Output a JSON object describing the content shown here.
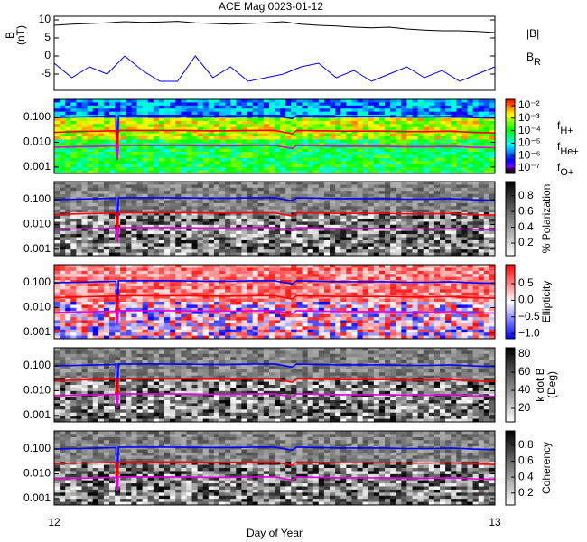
{
  "chart_data": [
    {
      "type": "line",
      "title": "ACE Mag 0023-01-12",
      "ylabel": [
        "B",
        "(nT)"
      ],
      "x": [
        12.0,
        12.04,
        12.08,
        12.12,
        12.16,
        12.2,
        12.24,
        12.28,
        12.32,
        12.36,
        12.4,
        12.44,
        12.48,
        12.52,
        12.56,
        12.6,
        12.64,
        12.68,
        12.72,
        12.76,
        12.8,
        12.84,
        12.88,
        12.92,
        12.96,
        13.0
      ],
      "xlim": [
        12,
        13
      ],
      "ylim": [
        -9.5,
        11
      ],
      "yticks": [
        10,
        5,
        0,
        -5
      ],
      "series": [
        {
          "name": "|B|",
          "color": "#000000",
          "values": [
            8.5,
            8.8,
            9,
            9.2,
            9.5,
            9.3,
            9.4,
            9.6,
            9.2,
            9.0,
            8.8,
            9.0,
            9.2,
            9.5,
            8.8,
            8.5,
            8.3,
            8.0,
            7.8,
            8.0,
            7.5,
            7.2,
            7.0,
            7.0,
            6.8,
            6.5
          ]
        },
        {
          "name": "BR",
          "color": "#0000ff",
          "values": [
            -2,
            -6,
            -3,
            -5,
            0,
            -4,
            -7,
            -7,
            0,
            -6,
            -3,
            -7,
            -6,
            -5,
            -3,
            -2,
            -6,
            -4,
            -7,
            -5,
            -3,
            -6,
            -4,
            -7,
            -5,
            -3
          ]
        }
      ]
    },
    {
      "type": "spectrogram",
      "colormap": "rainbow",
      "ylog": true,
      "zlog": true,
      "x": [
        12.0,
        12.05,
        12.1,
        12.14,
        12.143,
        12.146,
        12.2,
        12.25,
        12.3,
        12.35,
        12.4,
        12.45,
        12.5,
        12.54,
        12.55,
        12.6,
        12.65,
        12.7,
        12.75,
        12.8,
        12.85,
        12.9,
        12.95,
        13.0
      ],
      "xlim": [
        12,
        13
      ],
      "ylim": [
        0.00055,
        0.54
      ],
      "yticks": [
        {
          "value": 0.1,
          "label": "0.100"
        },
        {
          "value": 0.01,
          "label": "0.010"
        },
        0.001
      ],
      "zlim": [
        3.7e-08,
        0.032
      ],
      "zticks": [
        {
          "value": 0.01,
          "label": "10⁻²"
        },
        {
          "value": 0.001,
          "label": "10⁻³"
        },
        {
          "value": 0.0001,
          "label": "10⁻⁴"
        },
        {
          "value": 1e-05,
          "label": "10⁻⁵"
        },
        {
          "value": 1e-06,
          "label": "10⁻⁶"
        },
        {
          "value": 1e-07,
          "label": "10⁻⁷"
        }
      ],
      "series": [
        {
          "name": "fH+",
          "color": "#0000ff",
          "values": [
            0.1,
            0.105,
            0.11,
            0.115,
            0.003,
            0.12,
            0.12,
            0.12,
            0.118,
            0.115,
            0.115,
            0.12,
            0.12,
            0.09,
            0.12,
            0.115,
            0.11,
            0.11,
            0.11,
            0.105,
            0.105,
            0.11,
            0.1,
            0.095
          ]
        },
        {
          "name": "fHe+",
          "color": "#ff0000",
          "values": [
            0.025,
            0.027,
            0.028,
            0.029,
            0.002,
            0.03,
            0.03,
            0.03,
            0.03,
            0.029,
            0.029,
            0.03,
            0.03,
            0.022,
            0.03,
            0.029,
            0.028,
            0.028,
            0.028,
            0.027,
            0.027,
            0.028,
            0.025,
            0.024
          ]
        },
        {
          "name": "fO+",
          "color": "#e000e0",
          "values": [
            0.0063,
            0.0066,
            0.0069,
            0.0072,
            0.0019,
            0.0075,
            0.0075,
            0.0075,
            0.0074,
            0.0072,
            0.0072,
            0.0075,
            0.0075,
            0.0056,
            0.0075,
            0.0072,
            0.0069,
            0.0069,
            0.0069,
            0.0066,
            0.0066,
            0.0069,
            0.0063,
            0.006
          ]
        }
      ]
    },
    {
      "type": "spectrogram",
      "colormap": "gray",
      "ylog": true,
      "colorbar_label": [
        "% Polarization"
      ],
      "x": [
        12.0,
        12.05,
        12.1,
        12.14,
        12.143,
        12.146,
        12.2,
        12.25,
        12.3,
        12.35,
        12.4,
        12.45,
        12.5,
        12.54,
        12.55,
        12.6,
        12.65,
        12.7,
        12.75,
        12.8,
        12.85,
        12.9,
        12.95,
        13.0
      ],
      "xlim": [
        12,
        13
      ],
      "ylim": [
        0.00055,
        0.54
      ],
      "yticks": [
        {
          "value": 0.1,
          "label": "0.100"
        },
        {
          "value": 0.01,
          "label": "0.010"
        },
        0.001
      ],
      "zlim": [
        0.04,
        0.98
      ],
      "zticks": [
        0.8,
        0.6,
        0.4,
        0.2
      ],
      "series": [
        {
          "color": "#0000ff",
          "values": [
            0.1,
            0.105,
            0.11,
            0.115,
            0.003,
            0.12,
            0.12,
            0.12,
            0.118,
            0.115,
            0.115,
            0.12,
            0.12,
            0.09,
            0.12,
            0.115,
            0.11,
            0.11,
            0.11,
            0.105,
            0.105,
            0.11,
            0.1,
            0.095
          ]
        },
        {
          "color": "#ff0000",
          "values": [
            0.025,
            0.027,
            0.028,
            0.029,
            0.002,
            0.03,
            0.03,
            0.03,
            0.03,
            0.029,
            0.029,
            0.03,
            0.03,
            0.022,
            0.03,
            0.029,
            0.028,
            0.028,
            0.028,
            0.027,
            0.027,
            0.028,
            0.025,
            0.024
          ]
        },
        {
          "color": "#e000e0",
          "values": [
            0.0063,
            0.0066,
            0.0069,
            0.0072,
            0.0019,
            0.0075,
            0.0075,
            0.0075,
            0.0074,
            0.0072,
            0.0072,
            0.0075,
            0.0075,
            0.0056,
            0.0075,
            0.0072,
            0.0069,
            0.0069,
            0.0069,
            0.0066,
            0.0066,
            0.0069,
            0.0063,
            0.006
          ]
        }
      ]
    },
    {
      "type": "spectrogram",
      "colormap": "bwr",
      "ylog": true,
      "colorbar_label": [
        "Ellipticity"
      ],
      "x": [
        12.0,
        12.05,
        12.1,
        12.14,
        12.143,
        12.146,
        12.2,
        12.25,
        12.3,
        12.35,
        12.4,
        12.45,
        12.5,
        12.54,
        12.55,
        12.6,
        12.65,
        12.7,
        12.75,
        12.8,
        12.85,
        12.9,
        12.95,
        13.0
      ],
      "xlim": [
        12,
        13
      ],
      "ylim": [
        0.00055,
        0.54
      ],
      "yticks": [
        {
          "value": 0.1,
          "label": "0.100"
        },
        {
          "value": 0.01,
          "label": "0.010"
        },
        0.001
      ],
      "zlim": [
        -1.16,
        1.07
      ],
      "zticks": [
        0.5,
        {
          "value": 0,
          "label": "0.0"
        },
        {
          "value": -0.5,
          "label": "−0.5"
        },
        {
          "value": -1,
          "label": "−1.0"
        }
      ],
      "series": [
        {
          "color": "#0000ff",
          "values": [
            0.1,
            0.105,
            0.11,
            0.115,
            0.003,
            0.12,
            0.12,
            0.12,
            0.118,
            0.115,
            0.115,
            0.12,
            0.12,
            0.09,
            0.12,
            0.115,
            0.11,
            0.11,
            0.11,
            0.105,
            0.105,
            0.11,
            0.1,
            0.095
          ]
        },
        {
          "color": "#ff0000",
          "values": [
            0.025,
            0.027,
            0.028,
            0.029,
            0.002,
            0.03,
            0.03,
            0.03,
            0.03,
            0.029,
            0.029,
            0.03,
            0.03,
            0.022,
            0.03,
            0.029,
            0.028,
            0.028,
            0.028,
            0.027,
            0.027,
            0.028,
            0.025,
            0.024
          ]
        },
        {
          "color": "#e000e0",
          "values": [
            0.0063,
            0.0066,
            0.0069,
            0.0072,
            0.0019,
            0.0075,
            0.0075,
            0.0075,
            0.0074,
            0.0072,
            0.0072,
            0.0075,
            0.0075,
            0.0056,
            0.0075,
            0.0072,
            0.0069,
            0.0069,
            0.0069,
            0.0066,
            0.0066,
            0.0069,
            0.0063,
            0.006
          ]
        }
      ]
    },
    {
      "type": "spectrogram",
      "colormap": "gray",
      "ylog": true,
      "colorbar_label": [
        "k dot B",
        "(Deg)"
      ],
      "x": [
        12.0,
        12.05,
        12.1,
        12.14,
        12.143,
        12.146,
        12.2,
        12.25,
        12.3,
        12.35,
        12.4,
        12.45,
        12.5,
        12.54,
        12.55,
        12.6,
        12.65,
        12.7,
        12.75,
        12.8,
        12.85,
        12.9,
        12.95,
        13.0
      ],
      "xlim": [
        12,
        13
      ],
      "ylim": [
        0.00055,
        0.54
      ],
      "yticks": [
        {
          "value": 0.1,
          "label": "0.100"
        },
        {
          "value": 0.01,
          "label": "0.010"
        },
        0.001
      ],
      "zlim": [
        5,
        87
      ],
      "zticks": [
        80,
        60,
        40,
        20
      ],
      "series": [
        {
          "color": "#0000ff",
          "values": [
            0.1,
            0.105,
            0.11,
            0.115,
            0.003,
            0.12,
            0.12,
            0.12,
            0.118,
            0.115,
            0.115,
            0.12,
            0.12,
            0.09,
            0.12,
            0.115,
            0.11,
            0.11,
            0.11,
            0.105,
            0.105,
            0.11,
            0.1,
            0.095
          ]
        },
        {
          "color": "#ff0000",
          "values": [
            0.025,
            0.027,
            0.028,
            0.029,
            0.002,
            0.03,
            0.03,
            0.03,
            0.03,
            0.029,
            0.029,
            0.03,
            0.03,
            0.022,
            0.03,
            0.029,
            0.028,
            0.028,
            0.028,
            0.027,
            0.027,
            0.028,
            0.025,
            0.024
          ]
        },
        {
          "color": "#e000e0",
          "values": [
            0.0063,
            0.0066,
            0.0069,
            0.0072,
            0.0019,
            0.0075,
            0.0075,
            0.0075,
            0.0074,
            0.0072,
            0.0072,
            0.0075,
            0.0075,
            0.0056,
            0.0075,
            0.0072,
            0.0069,
            0.0069,
            0.0069,
            0.0066,
            0.0066,
            0.0069,
            0.0063,
            0.006
          ]
        }
      ]
    },
    {
      "type": "spectrogram",
      "colormap": "gray",
      "ylog": true,
      "colorbar_label": [
        "Coherency"
      ],
      "xlabel": "Day of Year",
      "xticks": [
        12,
        13
      ],
      "x": [
        12.0,
        12.05,
        12.1,
        12.14,
        12.143,
        12.146,
        12.2,
        12.25,
        12.3,
        12.35,
        12.4,
        12.45,
        12.5,
        12.54,
        12.55,
        12.6,
        12.65,
        12.7,
        12.75,
        12.8,
        12.85,
        12.9,
        12.95,
        13.0
      ],
      "xlim": [
        12,
        13
      ],
      "ylim": [
        0.00055,
        0.54
      ],
      "yticks": [
        {
          "value": 0.1,
          "label": "0.100"
        },
        {
          "value": 0.01,
          "label": "0.010"
        },
        0.001
      ],
      "zlim": [
        0.05,
        0.98
      ],
      "zticks": [
        0.8,
        0.6,
        0.4,
        0.2
      ],
      "series": [
        {
          "color": "#0000ff",
          "values": [
            0.1,
            0.105,
            0.11,
            0.115,
            0.003,
            0.12,
            0.12,
            0.12,
            0.118,
            0.115,
            0.115,
            0.12,
            0.12,
            0.09,
            0.12,
            0.115,
            0.11,
            0.11,
            0.11,
            0.105,
            0.105,
            0.11,
            0.1,
            0.095
          ]
        },
        {
          "color": "#ff0000",
          "values": [
            0.025,
            0.027,
            0.028,
            0.029,
            0.002,
            0.03,
            0.03,
            0.03,
            0.03,
            0.029,
            0.029,
            0.03,
            0.03,
            0.022,
            0.03,
            0.029,
            0.028,
            0.028,
            0.028,
            0.027,
            0.027,
            0.028,
            0.025,
            0.024
          ]
        },
        {
          "color": "#e000e0",
          "values": [
            0.0063,
            0.0066,
            0.0069,
            0.0072,
            0.0019,
            0.0075,
            0.0075,
            0.0075,
            0.0074,
            0.0072,
            0.0072,
            0.0075,
            0.0075,
            0.0056,
            0.0075,
            0.0072,
            0.0069,
            0.0069,
            0.0069,
            0.0066,
            0.0066,
            0.0069,
            0.0063,
            0.006
          ]
        }
      ]
    }
  ]
}
